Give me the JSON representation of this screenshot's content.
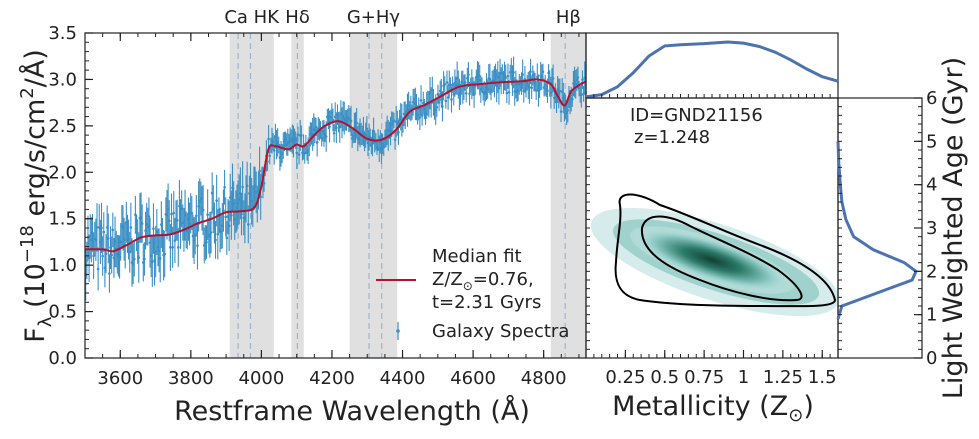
{
  "chart_data": [
    {
      "type": "line",
      "name": "spectrum",
      "xlabel": "Restframe Wavelength (Å)",
      "ylabel_main": "F",
      "ylabel_sub": "λ",
      "ylabel_rest": " (10",
      "ylabel_exp": "−18",
      "ylabel_units": " erg/s/cm",
      "ylabel_sq": "2",
      "ylabel_end": "/Å)",
      "xlim": [
        3500,
        4920
      ],
      "ylim": [
        0,
        3.5
      ],
      "xticks": [
        "3600",
        "3800",
        "4000",
        "4200",
        "4400",
        "4600",
        "4800"
      ],
      "xtick_values": [
        3600,
        3800,
        4000,
        4200,
        4400,
        4600,
        4800
      ],
      "yticks": [
        "0.0",
        "0.5",
        "1.0",
        "1.5",
        "2.0",
        "2.5",
        "3.0",
        "3.5"
      ],
      "ytick_values": [
        0,
        0.5,
        1.0,
        1.5,
        2.0,
        2.5,
        3.0,
        3.5
      ],
      "line_bands": [
        {
          "label": "Ca HK",
          "from": 3910,
          "to": 4035,
          "lines": [
            3934,
            3969
          ]
        },
        {
          "label": "Hδ",
          "from": 4085,
          "to": 4120,
          "lines": [
            4102
          ]
        },
        {
          "label": "G+Hγ",
          "from": 4250,
          "to": 4385,
          "lines": [
            4305,
            4341
          ]
        },
        {
          "label": "Hβ",
          "from": 4820,
          "to": 4920,
          "lines": [
            4861
          ]
        }
      ],
      "median_fit": {
        "x": [
          3500,
          3550,
          3580,
          3620,
          3660,
          3700,
          3740,
          3780,
          3820,
          3860,
          3900,
          3940,
          3980,
          4000,
          4020,
          4040,
          4060,
          4080,
          4100,
          4120,
          4150,
          4180,
          4220,
          4260,
          4300,
          4340,
          4380,
          4420,
          4460,
          4500,
          4560,
          4620,
          4680,
          4740,
          4780,
          4820,
          4840,
          4860,
          4880,
          4920
        ],
        "y": [
          1.17,
          1.17,
          1.15,
          1.22,
          1.3,
          1.32,
          1.33,
          1.38,
          1.45,
          1.5,
          1.57,
          1.58,
          1.62,
          1.85,
          2.25,
          2.28,
          2.26,
          2.25,
          2.3,
          2.28,
          2.4,
          2.5,
          2.55,
          2.47,
          2.36,
          2.35,
          2.45,
          2.65,
          2.72,
          2.8,
          2.92,
          2.95,
          2.97,
          2.98,
          3.0,
          2.95,
          2.82,
          2.72,
          2.88,
          2.98
        ]
      },
      "legend": {
        "fit_label_1": "Median fit",
        "fit_label_2": "Z/Z",
        "fit_label_2b": "=0.76,",
        "fit_label_3": "t=2.31 Gyrs",
        "spec_label": "Galaxy Spectra"
      },
      "colors": {
        "spectrum": "#3a8fc4",
        "fit": "#b5122d",
        "band": "#e0e0e0",
        "band_line": "#9fb4cc"
      }
    },
    {
      "type": "heatmap",
      "name": "age-metallicity posterior",
      "id_label": "ID=GND21156",
      "z_label": "z=1.248",
      "xlabel": "Metallicity (Z",
      "xlabel_end": ")",
      "ylabel": "Light Weighted Age (Gyr)",
      "xlim": [
        0,
        1.6
      ],
      "ylim": [
        0,
        6
      ],
      "xticks": [
        "0.25",
        "0.5",
        "0.75",
        "1",
        "1.25",
        "1.5"
      ],
      "xtick_values": [
        0.25,
        0.5,
        0.75,
        1.0,
        1.25,
        1.5
      ],
      "yticks": [
        "0",
        "1",
        "2",
        "3",
        "4",
        "5",
        "6"
      ],
      "ytick_values": [
        0,
        1,
        2,
        3,
        4,
        5,
        6
      ],
      "peak": {
        "metallicity": 0.82,
        "age": 2.0
      },
      "colors": {
        "marginal": "#4c72b0",
        "density_dark": "#1b5e4f",
        "contour": "#000000"
      }
    }
  ]
}
